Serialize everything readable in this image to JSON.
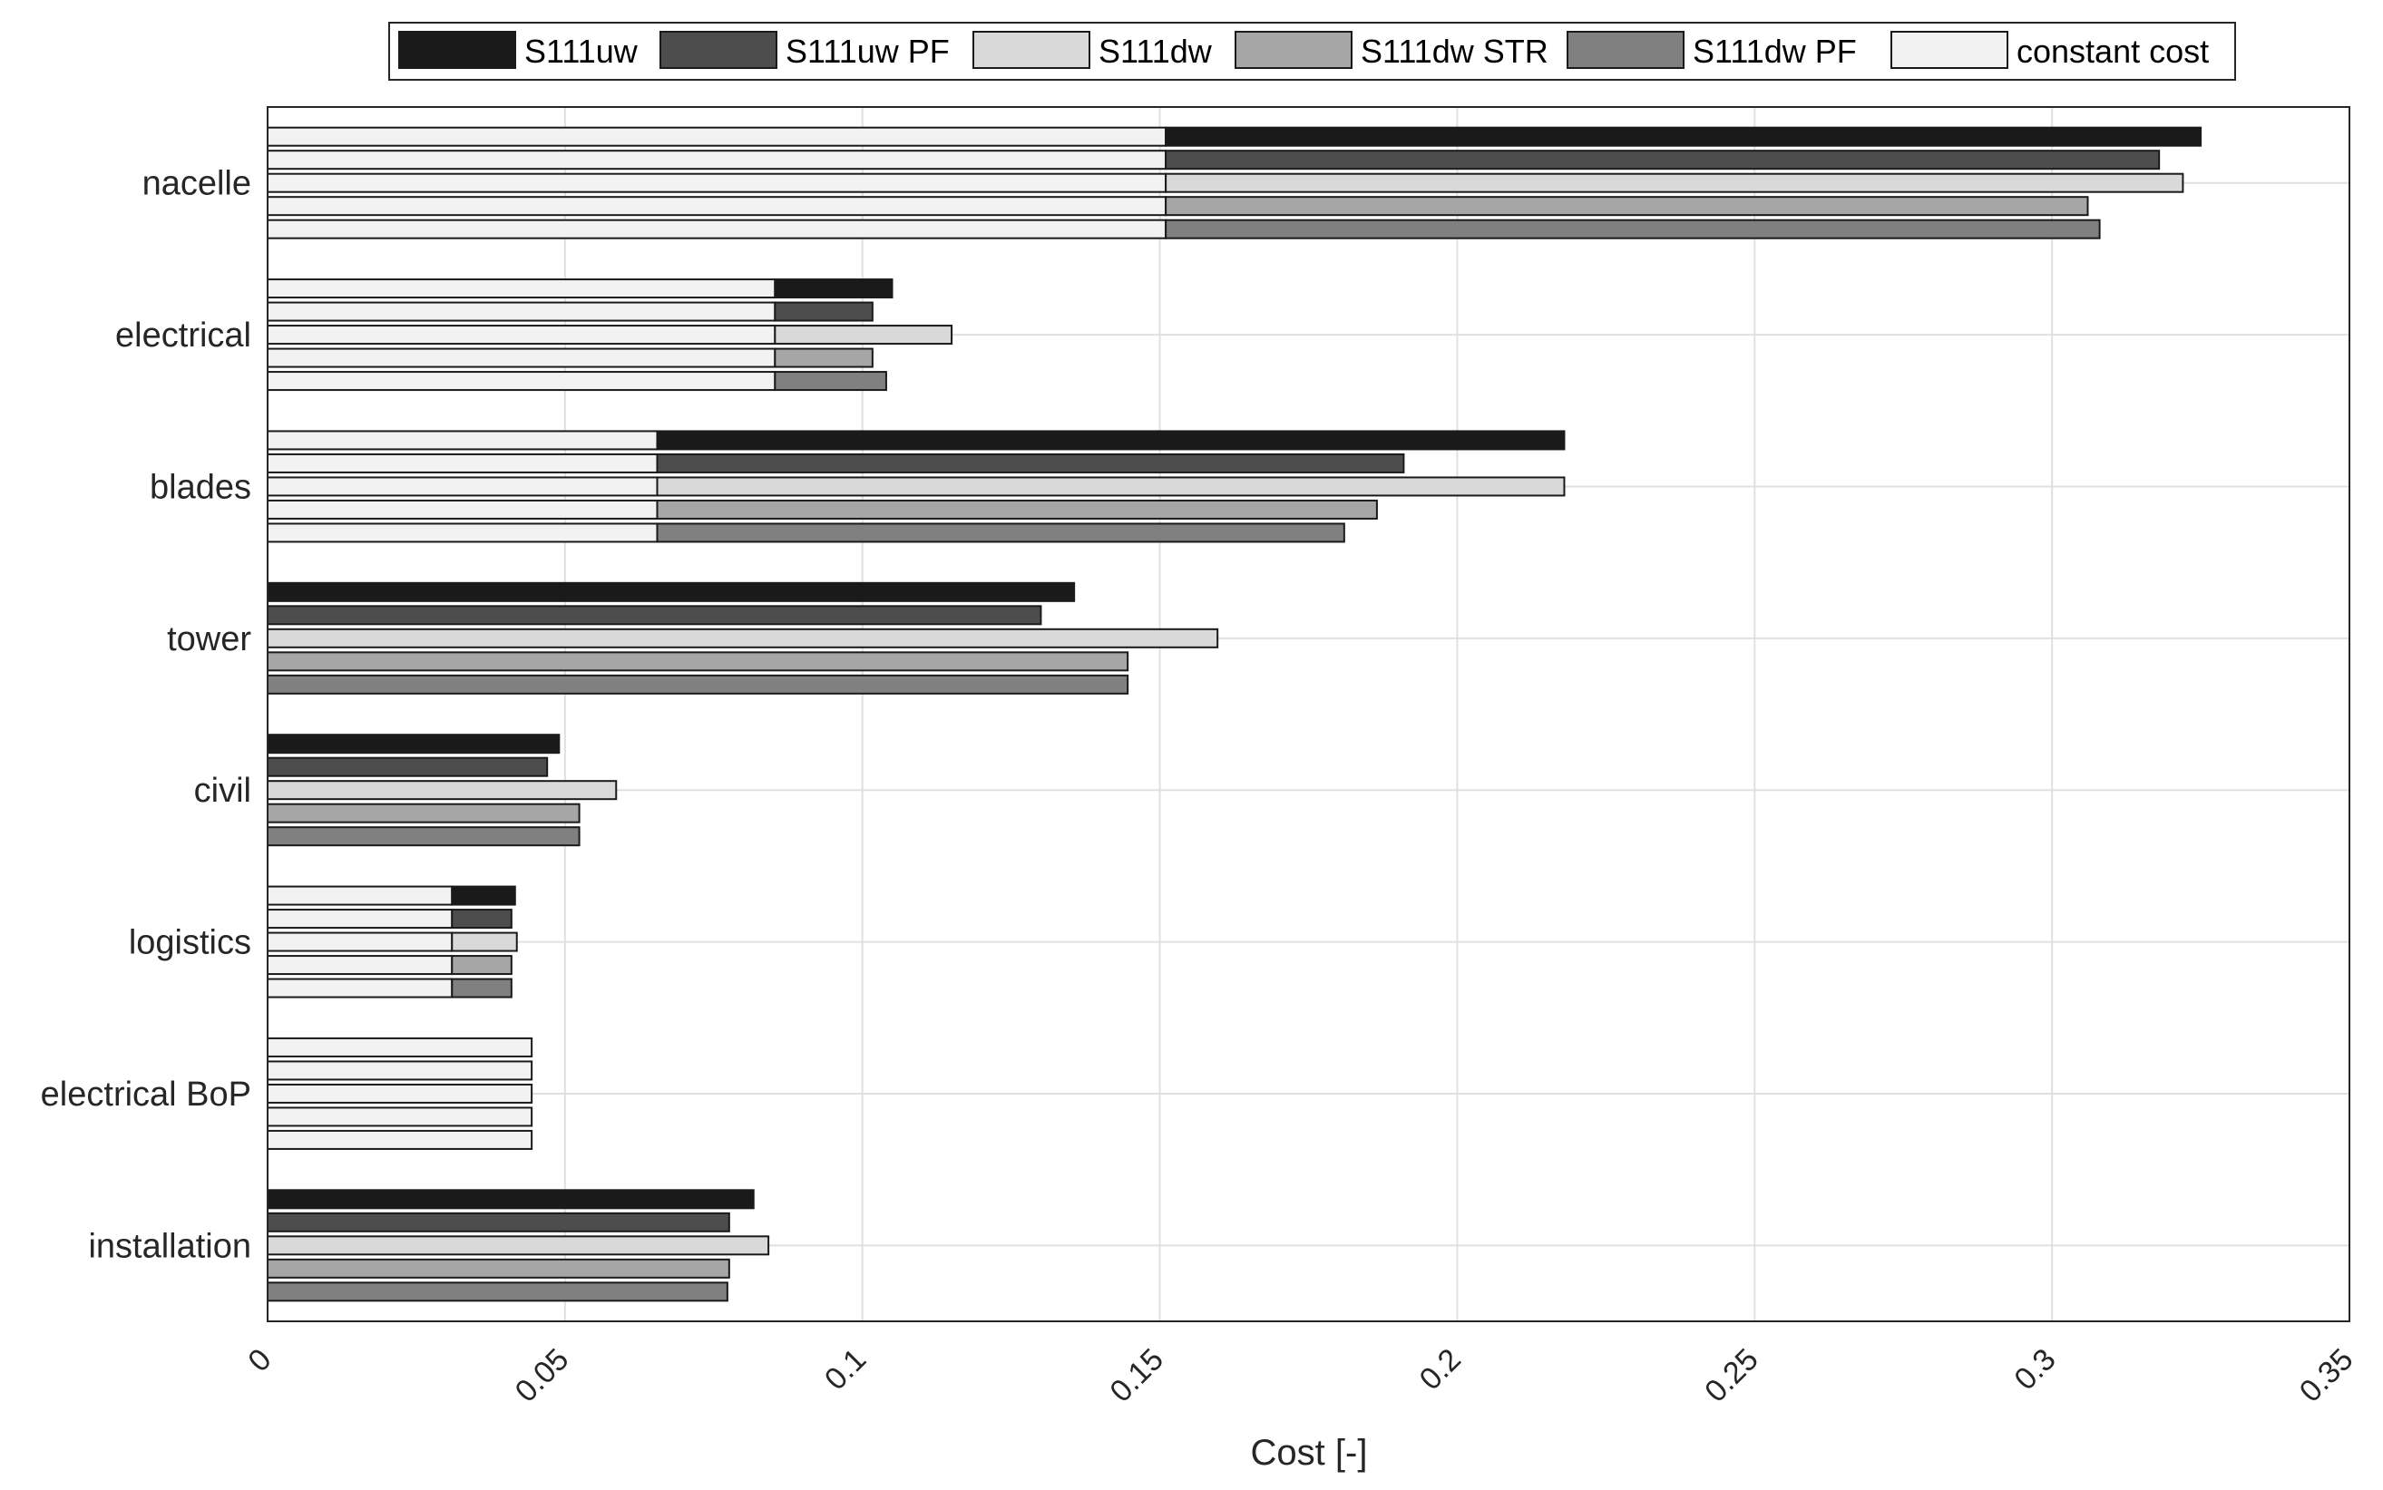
{
  "chart_data": {
    "type": "bar",
    "orientation": "horizontal",
    "stacked": true,
    "xlabel": "Cost [-]",
    "ylabel": "",
    "xlim": [
      0,
      0.35
    ],
    "xticks": [
      "0",
      "0.05",
      "0.1",
      "0.15",
      "0.2",
      "0.25",
      "0.3",
      "0.35"
    ],
    "xtick_values": [
      0,
      0.05,
      0.1,
      0.15,
      0.2,
      0.25,
      0.3,
      0.35
    ],
    "grid": true,
    "legend_position": "top",
    "categories": [
      "nacelle",
      "electrical",
      "blades",
      "tower",
      "civil",
      "logistics",
      "electrical BoP",
      "installation"
    ],
    "constant_cost": {
      "name": "constant cost",
      "color": "#f2f2f2",
      "values": [
        0.151,
        0.0853,
        0.0655,
        0,
        0,
        0.031,
        0.0444,
        0
      ]
    },
    "series": [
      {
        "name": "S111uw",
        "color": "#1a1a1a",
        "totals": [
          0.325,
          0.105,
          0.218,
          0.1356,
          0.049,
          0.0416,
          0.0444,
          0.0817
        ]
      },
      {
        "name": "S111uw PF",
        "color": "#4d4d4d",
        "totals": [
          0.318,
          0.1017,
          0.191,
          0.13,
          0.047,
          0.041,
          0.0444,
          0.0776
        ]
      },
      {
        "name": "S111dw",
        "color": "#d9d9d9",
        "totals": [
          0.322,
          0.115,
          0.218,
          0.1597,
          0.0586,
          0.0419,
          0.0444,
          0.0842
        ]
      },
      {
        "name": "S111dw STR",
        "color": "#a6a6a6",
        "totals": [
          0.306,
          0.1017,
          0.1865,
          0.1446,
          0.0524,
          0.041,
          0.0444,
          0.0776
        ]
      },
      {
        "name": "S111dw PF",
        "color": "#808080",
        "totals": [
          0.308,
          0.104,
          0.181,
          0.1446,
          0.0524,
          0.041,
          0.0444,
          0.0773
        ]
      }
    ]
  }
}
